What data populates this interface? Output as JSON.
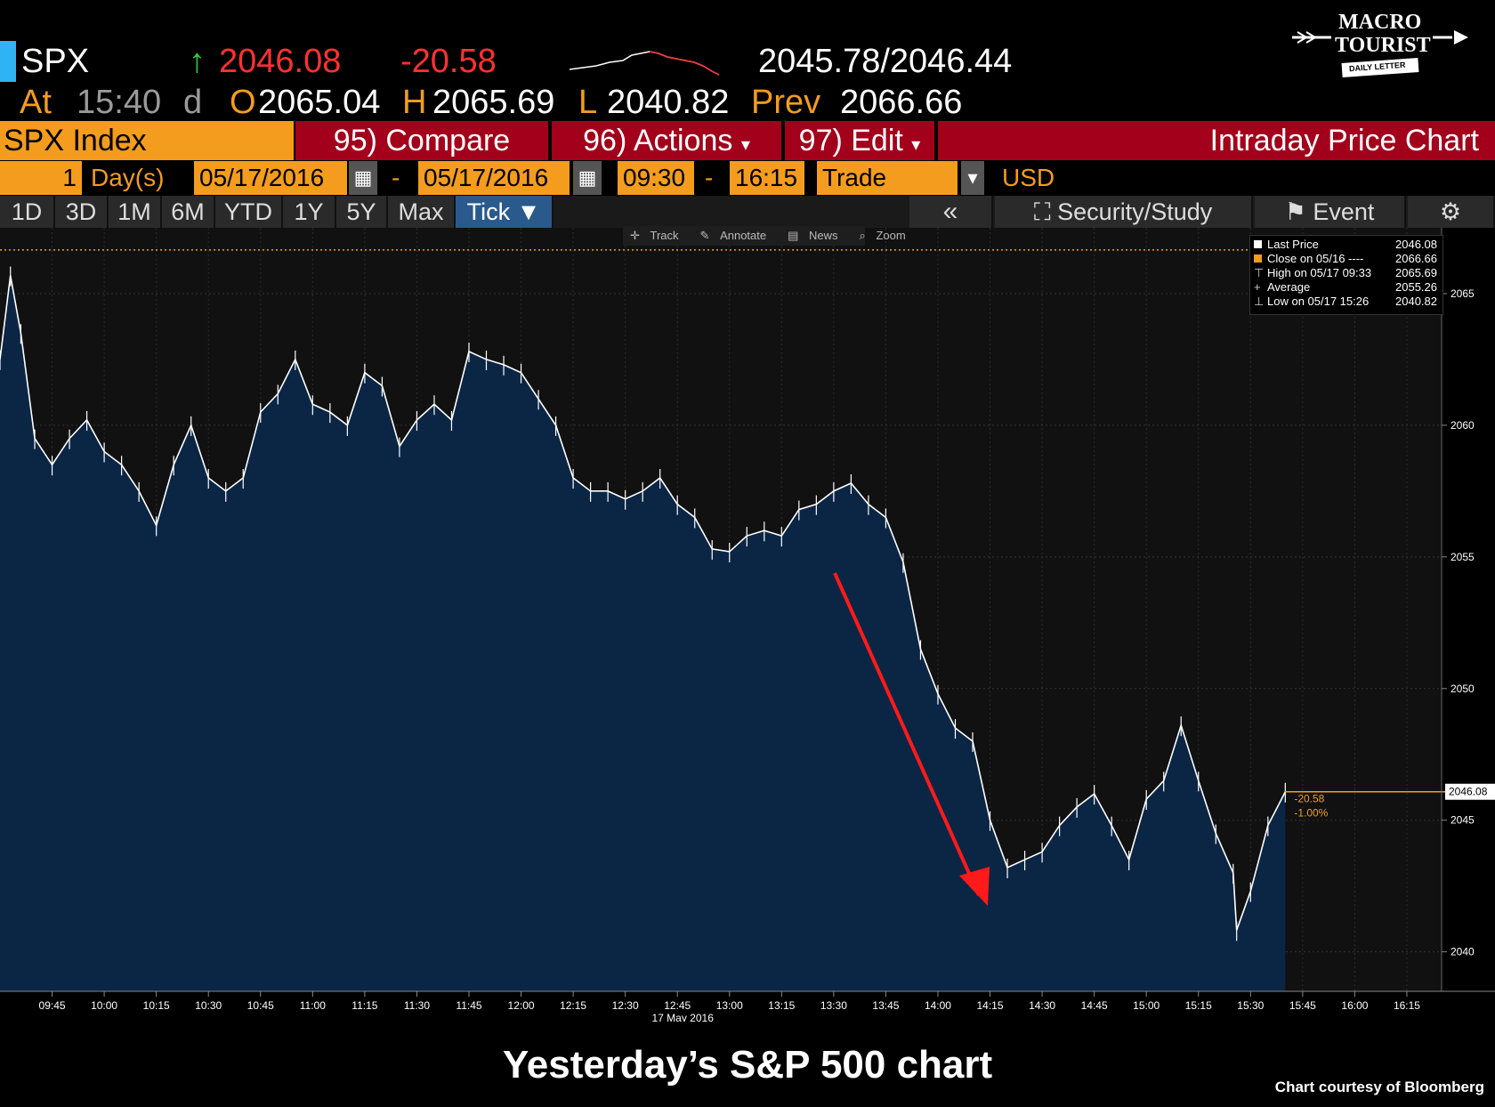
{
  "quote": {
    "ticker": "SPX",
    "last": "2046.08",
    "change": "-20.58",
    "bid_ask": "2045.78/2046.44",
    "at_label": "At",
    "time": "15:40",
    "time_suffix": "d",
    "open_label": "O",
    "open": "2065.04",
    "high_label": "H",
    "high": "2065.69",
    "low_label": "L",
    "low": "2040.82",
    "prev_label": "Prev",
    "prev": "2066.66"
  },
  "logo": {
    "line1": "MACRO",
    "line2": "TOURIST",
    "line3": "DAILY LETTER"
  },
  "function_bar": {
    "security": "SPX Index",
    "compare": "95) Compare",
    "actions": "96) Actions",
    "edit": "97) Edit",
    "title": "Intraday Price Chart"
  },
  "settings_bar": {
    "period_count": "1",
    "period_unit": "Day(s)",
    "start_date": "05/17/2016",
    "dash": "-",
    "end_date": "05/17/2016",
    "start_time": "09:30",
    "end_time": "16:15",
    "market": "Trade",
    "currency": "USD"
  },
  "range_tabs": [
    "1D",
    "3D",
    "1M",
    "6M",
    "YTD",
    "1Y",
    "5Y",
    "Max"
  ],
  "active_tab": "Tick ▼",
  "right_tabs": {
    "back": "«",
    "security_study": "Security/Study",
    "event": "Event"
  },
  "chart_toolbar": [
    "Track",
    "Annotate",
    "News",
    "Zoom"
  ],
  "legend": [
    {
      "label": "Last Price",
      "value": "2046.08"
    },
    {
      "label": "Close on 05/16 ----",
      "value": "2066.66"
    },
    {
      "label": "High on 05/17 09:33",
      "value": "2065.69"
    },
    {
      "label": "Average",
      "value": "2055.26"
    },
    {
      "label": "Low on 05/17 15:26",
      "value": "2040.82"
    }
  ],
  "colors": {
    "area_fill": "#0b2645",
    "line": "#ffffff",
    "prev_close": "#f39c1e",
    "arrow": "#ff1a1a",
    "bloomberg_orange": "#f39c1e",
    "bloomberg_red": "#a3001b"
  },
  "chart_data": {
    "type": "area",
    "date_label": "17 May 2016",
    "xlim": [
      "09:30",
      "16:25"
    ],
    "ylim": [
      2038.5,
      2067.5
    ],
    "x_ticks": [
      "09:45",
      "10:00",
      "10:15",
      "10:30",
      "10:45",
      "11:00",
      "11:15",
      "11:30",
      "11:45",
      "12:00",
      "12:15",
      "12:30",
      "12:45",
      "13:00",
      "13:15",
      "13:30",
      "13:45",
      "14:00",
      "14:15",
      "14:30",
      "14:45",
      "15:00",
      "15:15",
      "15:30",
      "15:45",
      "16:00",
      "16:15"
    ],
    "y_ticks": [
      2040,
      2045,
      2050,
      2055,
      2060,
      2065
    ],
    "prev_close": 2066.66,
    "last_price": 2046.08,
    "last_price_label": "2046.08",
    "change_label": "-20.58",
    "change_pct_label": "-1.00%",
    "grid": true,
    "series": [
      {
        "x": [
          "09:30",
          "09:33",
          "09:36",
          "09:40",
          "09:45",
          "09:50",
          "09:55",
          "10:00",
          "10:05",
          "10:10",
          "10:15",
          "10:20",
          "10:25",
          "10:30",
          "10:35",
          "10:40",
          "10:45",
          "10:50",
          "10:55",
          "11:00",
          "11:05",
          "11:10",
          "11:15",
          "11:20",
          "11:25",
          "11:30",
          "11:35",
          "11:40",
          "11:45",
          "11:50",
          "11:55",
          "12:00",
          "12:05",
          "12:10",
          "12:15",
          "12:20",
          "12:25",
          "12:30",
          "12:35",
          "12:40",
          "12:45",
          "12:50",
          "12:55",
          "13:00",
          "13:05",
          "13:10",
          "13:15",
          "13:20",
          "13:25",
          "13:30",
          "13:35",
          "13:40",
          "13:45",
          "13:50",
          "13:55",
          "14:00",
          "14:05",
          "14:10",
          "14:15",
          "14:20",
          "14:25",
          "14:30",
          "14:35",
          "14:40",
          "14:45",
          "14:50",
          "14:55",
          "15:00",
          "15:05",
          "15:10",
          "15:15",
          "15:20",
          "15:25",
          "15:26",
          "15:30",
          "15:35",
          "15:40"
        ],
        "y": [
          2062.5,
          2065.69,
          2063.5,
          2059.5,
          2058.5,
          2059.5,
          2060.2,
          2059.0,
          2058.5,
          2057.5,
          2056.2,
          2058.5,
          2060.0,
          2058.0,
          2057.5,
          2058.0,
          2060.5,
          2061.2,
          2062.5,
          2060.8,
          2060.5,
          2060.0,
          2062.0,
          2061.5,
          2059.2,
          2060.2,
          2060.8,
          2060.2,
          2062.8,
          2062.5,
          2062.3,
          2062.0,
          2061.0,
          2060.0,
          2058.0,
          2057.5,
          2057.5,
          2057.2,
          2057.5,
          2058.0,
          2057.0,
          2056.5,
          2055.3,
          2055.2,
          2055.8,
          2056.0,
          2055.8,
          2056.8,
          2057.0,
          2057.5,
          2057.8,
          2057.0,
          2056.5,
          2054.8,
          2051.5,
          2049.8,
          2048.5,
          2048.0,
          2045.0,
          2043.2,
          2043.5,
          2043.8,
          2044.8,
          2045.5,
          2046.0,
          2044.8,
          2043.5,
          2045.8,
          2046.5,
          2048.6,
          2046.5,
          2044.5,
          2043.0,
          2040.82,
          2042.3,
          2044.8,
          2046.08
        ]
      }
    ]
  },
  "caption": "Yesterday’s S&P 500 chart",
  "credit": "Chart courtesy of Bloomberg"
}
